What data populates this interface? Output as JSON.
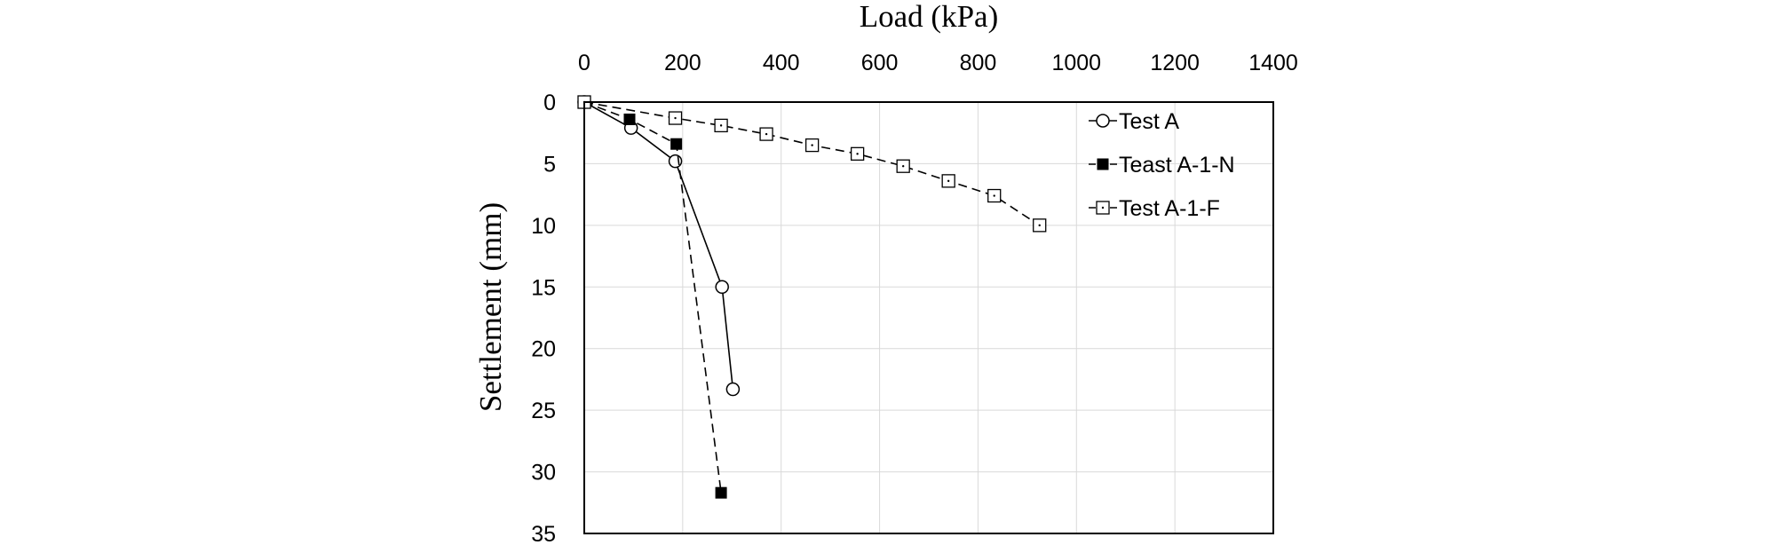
{
  "chart_data": {
    "type": "line",
    "title": "",
    "xlabel": "Load (kPa)",
    "ylabel": "Settlement (mm)",
    "xlim": [
      0,
      1400
    ],
    "ylim": [
      0,
      35
    ],
    "y_inverted": true,
    "x_axis_position": "top",
    "x_ticks": [
      "0",
      "200",
      "400",
      "600",
      "800",
      "1000",
      "1200",
      "1400"
    ],
    "y_ticks": [
      "0",
      "5",
      "10",
      "15",
      "20",
      "25",
      "30",
      "35"
    ],
    "grid": true,
    "legend_position": "top-right",
    "series": [
      {
        "name": "Test A",
        "marker": "open-circle",
        "line": "solid",
        "x": [
          0,
          95,
          185,
          280,
          302
        ],
        "y": [
          0,
          2.1,
          4.8,
          15.0,
          23.3
        ]
      },
      {
        "name": "Teast A-1-N",
        "marker": "filled-square",
        "line": "dashed",
        "x": [
          0,
          92,
          187,
          278
        ],
        "y": [
          0,
          1.4,
          3.4,
          31.7
        ]
      },
      {
        "name": "Test A-1-F",
        "marker": "open-square",
        "line": "dashed",
        "x": [
          0,
          185,
          278,
          370,
          463,
          555,
          648,
          740,
          833,
          925
        ],
        "y": [
          0,
          1.3,
          1.9,
          2.6,
          3.5,
          4.2,
          5.2,
          6.4,
          7.6,
          10.0
        ]
      }
    ]
  }
}
